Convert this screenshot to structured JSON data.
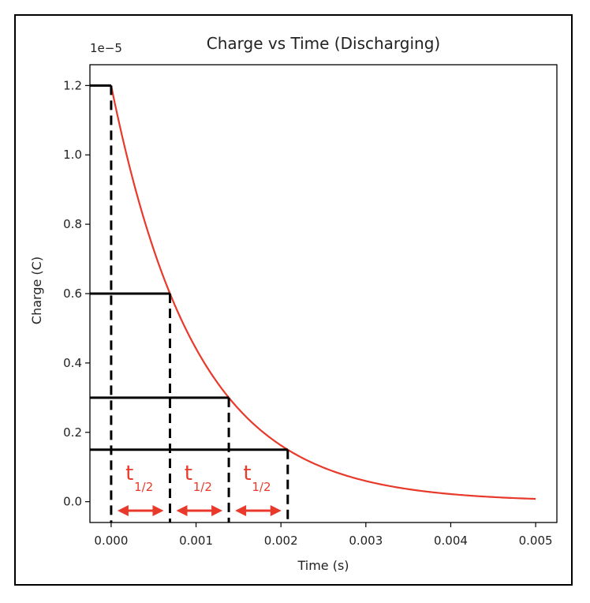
{
  "chart_data": {
    "type": "line",
    "title": "Charge vs Time (Discharging)",
    "xlabel": "Time (s)",
    "ylabel": "Charge (C)",
    "y_offset_label": "1e−5",
    "xlim": [
      -0.00025,
      0.00525
    ],
    "ylim": [
      -0.06,
      1.26
    ],
    "x_ticks": [
      0.0,
      0.001,
      0.002,
      0.003,
      0.004,
      0.005
    ],
    "x_tick_labels": [
      "0.000",
      "0.001",
      "0.002",
      "0.003",
      "0.004",
      "0.005"
    ],
    "y_ticks": [
      0.0,
      0.2,
      0.4,
      0.6,
      0.8,
      1.0,
      1.2
    ],
    "y_tick_labels": [
      "0.0",
      "0.2",
      "0.4",
      "0.6",
      "0.8",
      "1.0",
      "1.2"
    ],
    "grid": false,
    "series": [
      {
        "color": "#e8392b",
        "q0": 1.2,
        "half_life": 0.000693,
        "x_range": [
          0,
          0.005
        ],
        "samples": 200
      }
    ],
    "half_life_points": [
      {
        "x": 0.0,
        "y": 1.2
      },
      {
        "x": 0.000693,
        "y": 0.6
      },
      {
        "x": 0.001386,
        "y": 0.3
      },
      {
        "x": 0.00208,
        "y": 0.15
      }
    ],
    "half_life_markers": [
      {
        "label": "t",
        "subscript": "1/2",
        "x_start": 0.0,
        "x_end": 0.000693
      },
      {
        "label": "t",
        "subscript": "1/2",
        "x_start": 0.000693,
        "x_end": 0.001386
      },
      {
        "label": "t",
        "subscript": "1/2",
        "x_start": 0.001386,
        "x_end": 0.00208
      }
    ],
    "annotation_color": "#e8392b"
  }
}
